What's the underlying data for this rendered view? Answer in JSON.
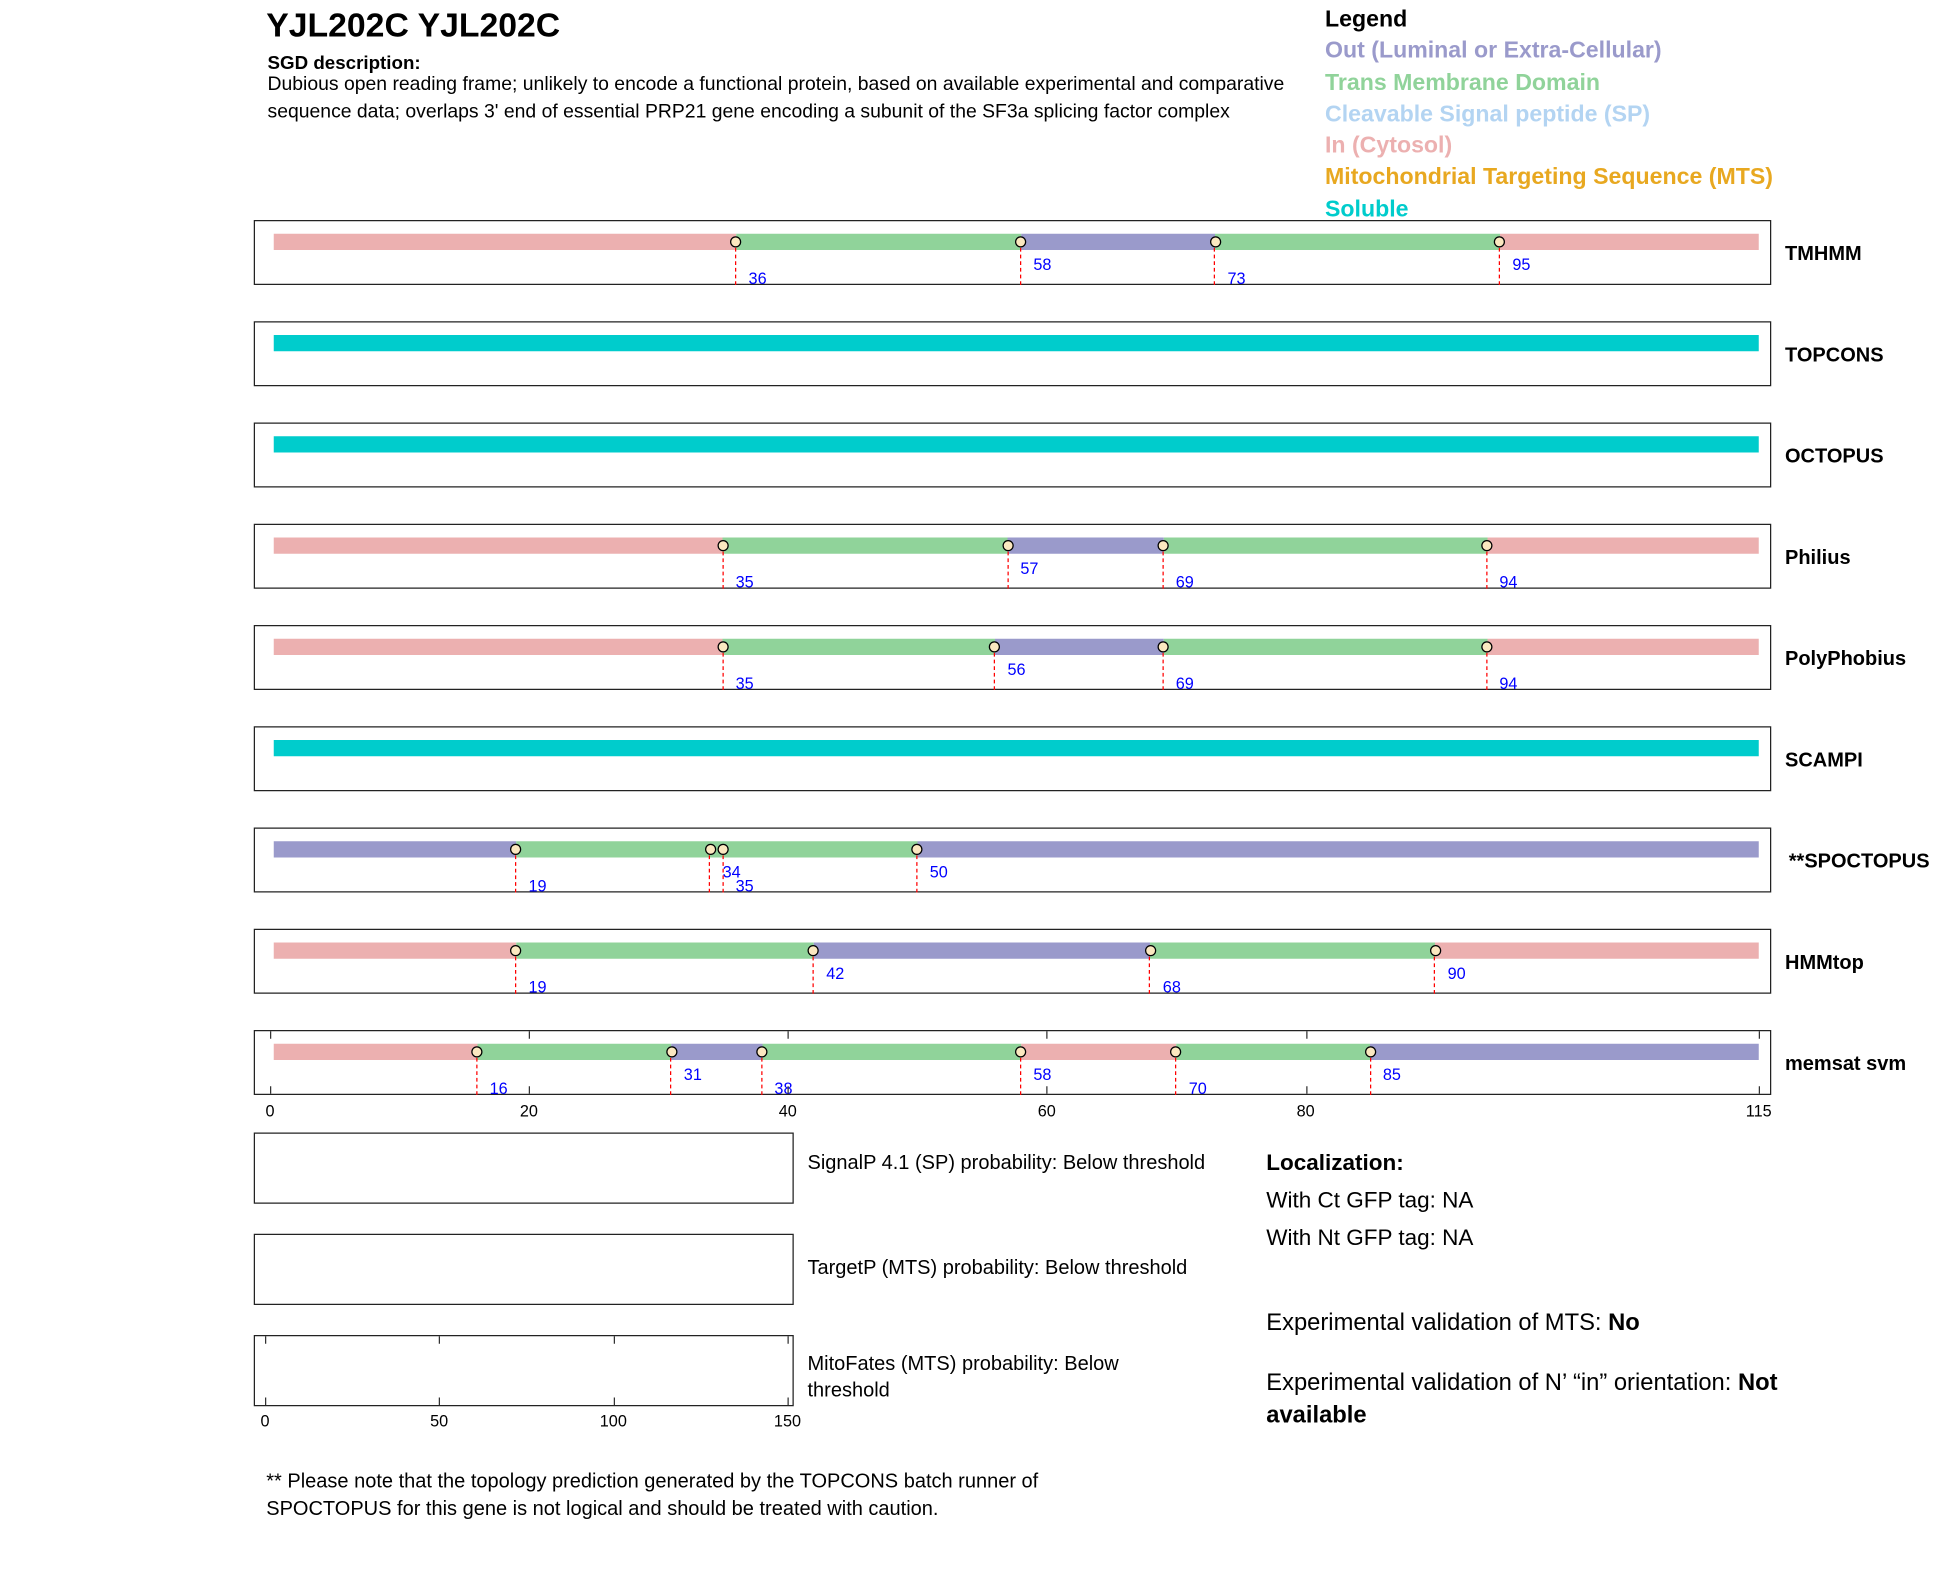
{
  "header": {
    "title": "YJL202C  YJL202C",
    "sgd_heading": "SGD description:",
    "sgd_text": "Dubious open reading frame; unlikely to encode a functional protein, based on available experimental and comparative sequence data; overlaps 3' end of essential PRP21 gene encoding a subunit of the SF3a splicing factor complex"
  },
  "legend": {
    "title": "Legend",
    "items": [
      {
        "label": "Out (Luminal or Extra-Cellular)",
        "color": "#9a9acb"
      },
      {
        "label": "Trans Membrane Domain",
        "color": "#90d39a"
      },
      {
        "label": "Cleavable Signal peptide (SP)",
        "color": "#b3d4f2"
      },
      {
        "label": "In (Cytosol)",
        "color": "#ecb0b0"
      },
      {
        "label": "Mitochondrial Targeting Sequence (MTS)",
        "color": "#e8a820"
      },
      {
        "label": "Soluble",
        "color": "#00cccc"
      }
    ]
  },
  "chart_data": {
    "type": "topology-tracks",
    "xlim": [
      0,
      115
    ],
    "xticks": [
      0,
      20,
      40,
      60,
      80,
      115
    ],
    "colors": {
      "in": "#ecb0b0",
      "tm": "#90d39a",
      "out": "#9a9acb",
      "soluble": "#00cccc"
    },
    "tracks": [
      {
        "name": "TMHMM",
        "segments": [
          [
            "in",
            0,
            36
          ],
          [
            "tm",
            36,
            58
          ],
          [
            "out",
            58,
            73
          ],
          [
            "tm",
            73,
            95
          ],
          [
            "in",
            95,
            115
          ]
        ],
        "boundaries": [
          36,
          58,
          73,
          95
        ]
      },
      {
        "name": "TOPCONS",
        "segments": [
          [
            "soluble",
            0,
            115
          ]
        ],
        "boundaries": []
      },
      {
        "name": "OCTOPUS",
        "segments": [
          [
            "soluble",
            0,
            115
          ]
        ],
        "boundaries": []
      },
      {
        "name": "Philius",
        "segments": [
          [
            "in",
            0,
            35
          ],
          [
            "tm",
            35,
            57
          ],
          [
            "out",
            57,
            69
          ],
          [
            "tm",
            69,
            94
          ],
          [
            "in",
            94,
            115
          ]
        ],
        "boundaries": [
          35,
          57,
          69,
          94
        ]
      },
      {
        "name": "PolyPhobius",
        "segments": [
          [
            "in",
            0,
            35
          ],
          [
            "tm",
            35,
            56
          ],
          [
            "out",
            56,
            69
          ],
          [
            "tm",
            69,
            94
          ],
          [
            "in",
            94,
            115
          ]
        ],
        "boundaries": [
          35,
          56,
          69,
          94
        ]
      },
      {
        "name": "SCAMPI",
        "segments": [
          [
            "soluble",
            0,
            115
          ]
        ],
        "boundaries": []
      },
      {
        "name": "**SPOCTOPUS",
        "segments": [
          [
            "out",
            0,
            19
          ],
          [
            "tm",
            19,
            34
          ],
          [
            "tm",
            34,
            35
          ],
          [
            "tm",
            35,
            50
          ],
          [
            "out",
            50,
            115
          ]
        ],
        "boundaries": [
          19,
          34,
          35,
          50
        ]
      },
      {
        "name": "HMMtop",
        "segments": [
          [
            "in",
            0,
            19
          ],
          [
            "tm",
            19,
            42
          ],
          [
            "out",
            42,
            68
          ],
          [
            "tm",
            68,
            90
          ],
          [
            "in",
            90,
            115
          ]
        ],
        "boundaries": [
          19,
          42,
          68,
          90
        ]
      },
      {
        "name": "memsat svm",
        "segments": [
          [
            "in",
            0,
            16
          ],
          [
            "tm",
            16,
            31
          ],
          [
            "out",
            31,
            38
          ],
          [
            "tm",
            38,
            58
          ],
          [
            "in",
            58,
            70
          ],
          [
            "tm",
            70,
            85
          ],
          [
            "out",
            85,
            115
          ]
        ],
        "boundaries": [
          16,
          31,
          38,
          58,
          70,
          85
        ]
      }
    ],
    "prob_plot": {
      "xticks": [
        0,
        50,
        100,
        150
      ],
      "xlim": [
        0,
        150
      ]
    }
  },
  "predictions": {
    "signalp": "SignalP 4.1 (SP) probability: Below threshold",
    "targetp": "TargetP (MTS) probability: Below threshold",
    "mitofates_1": "MitoFates (MTS) probability: Below",
    "mitofates_2": "threshold"
  },
  "localization": {
    "heading": "Localization:",
    "ct": "With Ct GFP tag: NA",
    "nt": "With Nt GFP tag: NA"
  },
  "validation": {
    "mts_label": "Experimental validation of MTS: ",
    "mts_value": "No",
    "orient_label": "Experimental validation of N’ “in” orientation: ",
    "orient_value_1": "Not",
    "orient_value_2": "available"
  },
  "footnote": {
    "line1": "** Please note that the topology prediction generated by the TOPCONS batch runner of",
    "line2": "SPOCTOPUS for this gene is not logical and should be treated with caution."
  }
}
